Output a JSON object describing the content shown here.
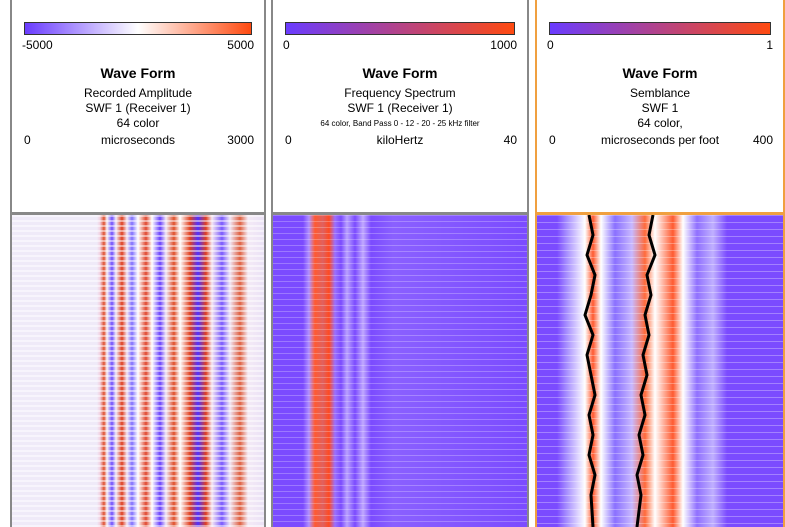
{
  "panels": [
    {
      "scale_min": "-5000",
      "scale_max": "5000",
      "title": "Wave Form",
      "lines": [
        "Recorded Amplitude",
        "SWF 1 (Receiver 1)",
        "64 color"
      ],
      "axis": {
        "min": "0",
        "label": "microseconds",
        "max": "3000"
      }
    },
    {
      "scale_min": "0",
      "scale_max": "1000",
      "title": "Wave Form",
      "lines": [
        "Frequency Spectrum",
        "SWF 1 (Receiver 1)",
        "64 color, Band Pass 0 - 12 - 20 - 25 kHz filter"
      ],
      "axis": {
        "min": "0",
        "label": "kiloHertz",
        "max": "40"
      }
    },
    {
      "scale_min": "0",
      "scale_max": "1",
      "title": "Wave Form",
      "lines": [
        "Semblance",
        "SWF 1",
        "64 color,"
      ],
      "axis": {
        "min": "0",
        "label": "microseconds per foot",
        "max": "400"
      }
    }
  ]
}
